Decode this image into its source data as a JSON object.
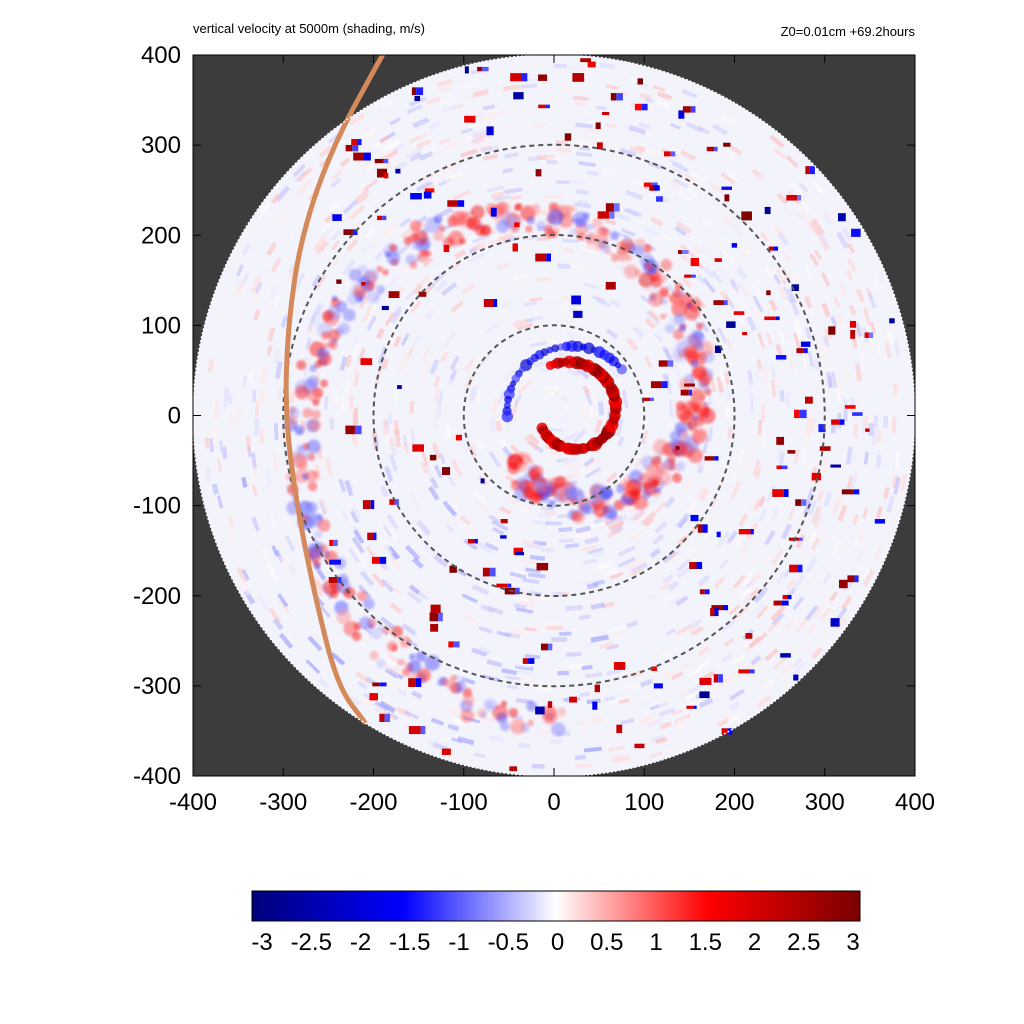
{
  "chart_data": {
    "type": "heatmap",
    "title": "vertical velocity at 5000m (shading, m/s)",
    "subtitle": "Z0=0.01cm  +69.2hours",
    "xlabel": "",
    "ylabel": "",
    "xlim": [
      -400,
      400
    ],
    "ylim": [
      -400,
      400
    ],
    "x_ticks": [
      "-400",
      "-300",
      "-200",
      "-100",
      "0",
      "100",
      "200",
      "300",
      "400"
    ],
    "y_ticks": [
      "400",
      "300",
      "200",
      "100",
      "0",
      "-100",
      "-200",
      "-300",
      "-400"
    ],
    "x_tick_values": [
      -400,
      -300,
      -200,
      -100,
      0,
      100,
      200,
      300,
      400
    ],
    "y_tick_values": [
      400,
      300,
      200,
      100,
      0,
      -100,
      -200,
      -300,
      -400
    ],
    "domain_radius": 400,
    "range_rings": [
      100,
      200,
      300
    ],
    "colorbar": {
      "min": -3,
      "max": 3,
      "ticks": [
        "-3",
        "-2.5",
        "-2",
        "-1.5",
        "-1",
        "-0.5",
        "0",
        "0.5",
        "1",
        "1.5",
        "2",
        "2.5",
        "3"
      ],
      "tick_values": [
        -3,
        -2.5,
        -2,
        -1.5,
        -1,
        -0.5,
        0,
        0.5,
        1,
        1.5,
        2,
        2.5,
        3
      ],
      "colors": [
        "#00007a",
        "#0000ff",
        "#ffffff",
        "#ff0000",
        "#7a0000"
      ]
    },
    "background_color": "#3c3c3c",
    "front_line_color": "#d4895a",
    "front_line": [
      [
        -190,
        400
      ],
      [
        -245,
        300
      ],
      [
        -280,
        200
      ],
      [
        -295,
        100
      ],
      [
        -298,
        0
      ],
      [
        -285,
        -100
      ],
      [
        -265,
        -200
      ],
      [
        -240,
        -300
      ],
      [
        -210,
        -340
      ]
    ],
    "inner_eyewall": {
      "center": [
        20,
        5
      ],
      "radius": 45
    },
    "rainbands": [
      {
        "type": "spiral_updraft",
        "start_angle_deg": -120,
        "end_angle_deg": 270,
        "r_start": 70,
        "r_end": 340
      },
      {
        "type": "convective_cells",
        "count": 220,
        "region": "annulus",
        "r_min": 80,
        "r_max": 400
      }
    ]
  }
}
